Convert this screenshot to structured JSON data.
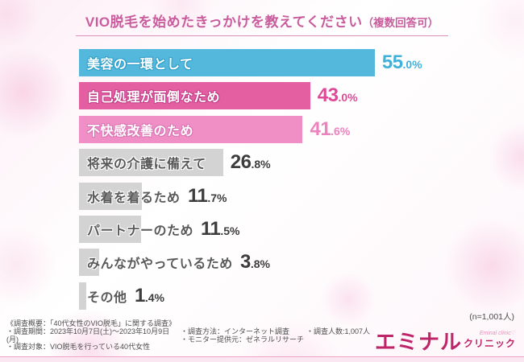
{
  "title": {
    "main": "VIO脱毛を始めたきっかけを教えてください",
    "note": "（複数回答可）"
  },
  "sample_note": "(n=1,001人)",
  "chart_data": {
    "type": "bar",
    "orientation": "horizontal",
    "unit": "%",
    "xlim": [
      0,
      60
    ],
    "grid": false,
    "legend": false,
    "categories": [
      "美容の一環として",
      "自己処理が面倒なため",
      "不快感改善のため",
      "将来の介護に備えて",
      "水着を着るため",
      "パートナーのため",
      "みんながやっているため",
      "その他"
    ],
    "values": [
      55.0,
      43.0,
      41.6,
      26.8,
      11.7,
      11.5,
      3.8,
      1.4
    ],
    "bar_colors": [
      "#54b8dd",
      "#e35fa2",
      "#f08fc6",
      "#d3d3d3",
      "#d3d3d3",
      "#d3d3d3",
      "#d3d3d3",
      "#d3d3d3"
    ],
    "value_colors": [
      "#3fb1da",
      "#de4a97",
      "#ee82bf",
      "#3d3d3d",
      "#3d3d3d",
      "#3d3d3d",
      "#3d3d3d",
      "#3d3d3d"
    ],
    "label_colors": [
      "#ffffff",
      "#ffffff",
      "#ffffff",
      "#595959",
      "#595959",
      "#595959",
      "#595959",
      "#595959"
    ],
    "label_outline_colors": [
      "#2e9fc9",
      "#c43e8a",
      "#db74b4",
      "#ffffff",
      "#ffffff",
      "#ffffff",
      "#ffffff",
      "#ffffff"
    ]
  },
  "footer": {
    "overview": "《調査概要：「40代女性のVIO脱毛」に関する調査》",
    "period": "・調査期間：2023年10月7日(土)～2023年10月9日(月)",
    "target": "・調査対象：VIO脱毛を行っている40代女性",
    "method": "・調査方法：インターネット調査",
    "monitor": "・モニター提供元：ゼネラルリサーチ",
    "respondents": "・調査人数:1,007人"
  },
  "logo": {
    "main": "エミナル",
    "sub": "クリニック",
    "script": "Eminal clinic♡"
  },
  "colors": {
    "title": "#c95c9d",
    "accent_cyan": "#54b8dd",
    "accent_pink": "#e35fa2",
    "accent_light_pink": "#f08fc6",
    "bar_gray": "#d3d3d3",
    "logo_magenta": "#be2569",
    "divider_pink": "#f0a1c4"
  }
}
